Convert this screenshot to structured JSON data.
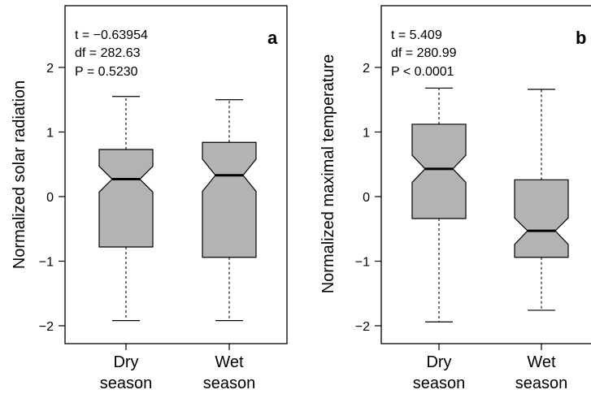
{
  "chart_data": [
    {
      "type": "boxplot",
      "panel_label": "a",
      "ylabel": "Normalized solar radiation",
      "ylim": [
        -2.2,
        3.0
      ],
      "yticks": [
        -2,
        -1,
        0,
        1,
        2
      ],
      "ytick_labels": [
        "−2",
        "−1",
        "0",
        "1",
        "2"
      ],
      "categories": [
        {
          "line1": "Dry",
          "line2": "season"
        },
        {
          "line1": "Wet",
          "line2": "season"
        }
      ],
      "boxes": [
        {
          "whisker_low": -1.92,
          "q1": -0.78,
          "median": 0.27,
          "q3": 0.73,
          "whisker_high": 1.55,
          "notch_low": 0.07,
          "notch_high": 0.47
        },
        {
          "whisker_low": -1.92,
          "q1": -0.94,
          "median": 0.33,
          "q3": 0.84,
          "whisker_high": 1.5,
          "notch_low": 0.08,
          "notch_high": 0.58
        }
      ],
      "stats": [
        "t = −0.63954",
        "df = 282.63",
        "P = 0.5230"
      ],
      "box_color": "#b3b3b3"
    },
    {
      "type": "boxplot",
      "panel_label": "b",
      "ylabel": "Normalized maximal temperature",
      "ylim": [
        -2.2,
        3.0
      ],
      "yticks": [
        -2,
        -1,
        0,
        1,
        2
      ],
      "ytick_labels": [
        "−2",
        "−1",
        "0",
        "1",
        "2"
      ],
      "categories": [
        {
          "line1": "Dry",
          "line2": "season"
        },
        {
          "line1": "Wet",
          "line2": "season"
        }
      ],
      "boxes": [
        {
          "whisker_low": -1.94,
          "q1": -0.34,
          "median": 0.43,
          "q3": 1.12,
          "whisker_high": 1.68,
          "notch_low": 0.22,
          "notch_high": 0.64
        },
        {
          "whisker_low": -1.76,
          "q1": -0.94,
          "median": -0.53,
          "q3": 0.26,
          "whisker_high": 1.66,
          "notch_low": -0.74,
          "notch_high": -0.33
        }
      ],
      "stats": [
        "t = 5.409",
        "df = 280.99",
        "P < 0.0001"
      ],
      "box_color": "#b3b3b3"
    }
  ]
}
